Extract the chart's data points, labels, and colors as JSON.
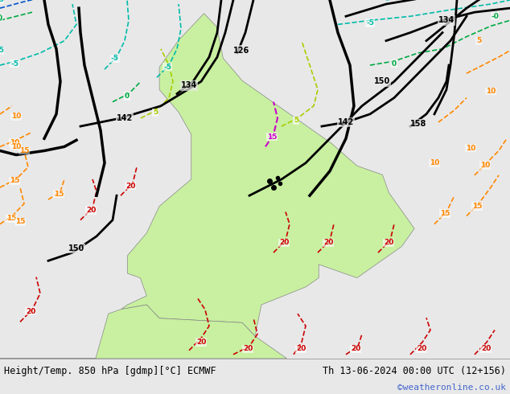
{
  "title_left": "Height/Temp. 850 hPa [gdmp][°C] ECMWF",
  "title_right": "Th 13-06-2024 00:00 UTC (12+156)",
  "watermark": "©weatheronline.co.uk",
  "bg_color": "#e8e8e8",
  "land_color": "#c8f0a0",
  "ocean_color": "#e8e8e8",
  "fig_width": 6.34,
  "fig_height": 4.9,
  "dpi": 100,
  "watermark_color": "#4466cc"
}
